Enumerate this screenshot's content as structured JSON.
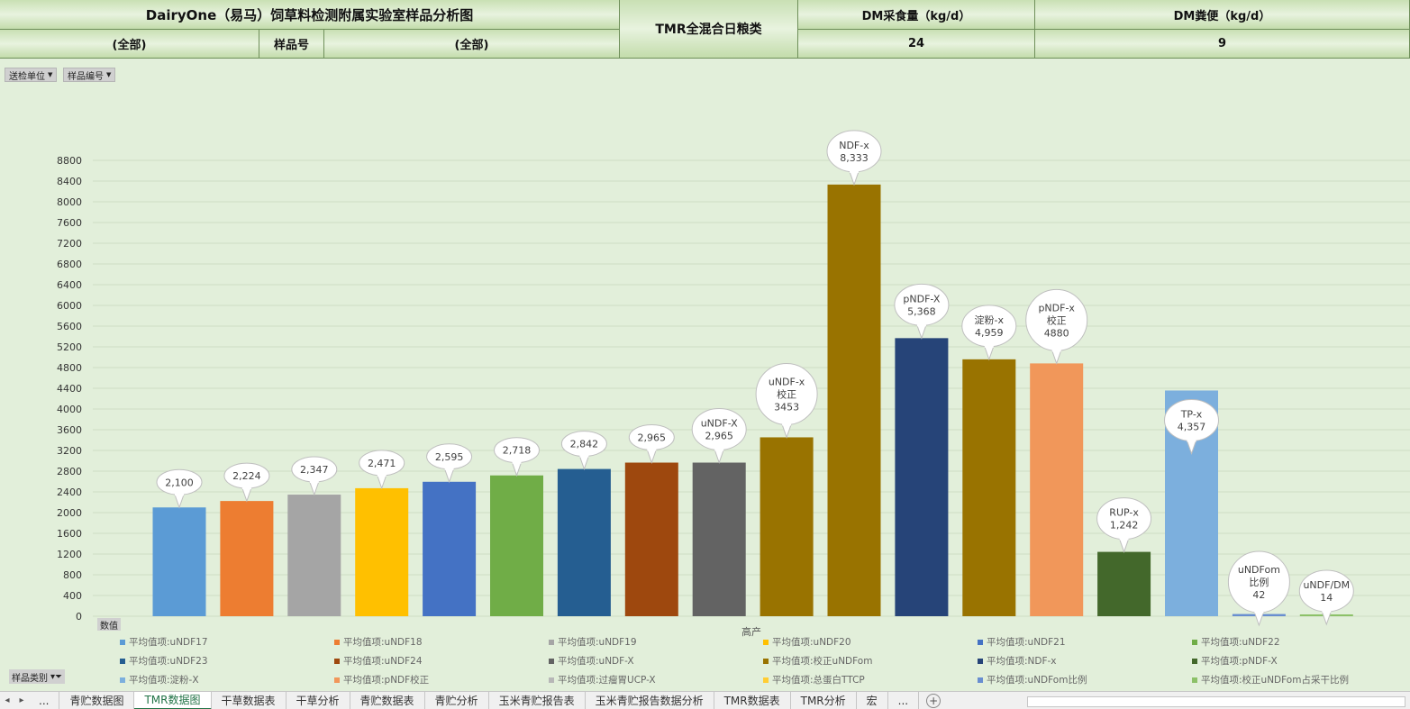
{
  "header": {
    "title": "DairyOne（易马）饲草料检测附属实验室样品分析图",
    "filter1_value": "(全部)",
    "sample_label": "样品号",
    "filter2_value": "(全部)",
    "tmr_label": "TMR全混合日粮类",
    "dm_intake_label": "DM采食量（kg/d）",
    "dm_intake_value": "24",
    "dm_feces_label": "DM粪便（kg/d）",
    "dm_feces_value": "9"
  },
  "slicers": {
    "unit": "送检单位",
    "sample_no": "样品编号",
    "values": "数值",
    "category": "样品类别"
  },
  "colors": {
    "background": "#e2efda",
    "grid": "#cfdcc4"
  },
  "chart_data": {
    "type": "bar",
    "xlabel": "高产",
    "ylim": [
      0,
      8800
    ],
    "yticks": [
      0,
      400,
      800,
      1200,
      1600,
      2000,
      2400,
      2800,
      3200,
      3600,
      4000,
      4400,
      4800,
      5200,
      5600,
      6000,
      6400,
      6800,
      7200,
      7600,
      8000,
      8400,
      8800
    ],
    "grid": true,
    "legend_position": "bottom",
    "series": [
      {
        "name": "平均值项:uNDF17",
        "value": 2100,
        "label": [
          "2,100"
        ],
        "color": "#5b9bd5"
      },
      {
        "name": "平均值项:uNDF18",
        "value": 2224,
        "label": [
          "2,224"
        ],
        "color": "#ed7d31"
      },
      {
        "name": "平均值项:uNDF19",
        "value": 2347,
        "label": [
          "2,347"
        ],
        "color": "#a5a5a5"
      },
      {
        "name": "平均值项:uNDF20",
        "value": 2471,
        "label": [
          "2,471"
        ],
        "color": "#ffc000"
      },
      {
        "name": "平均值项:uNDF21",
        "value": 2595,
        "label": [
          "2,595"
        ],
        "color": "#4472c4"
      },
      {
        "name": "平均值项:uNDF22",
        "value": 2718,
        "label": [
          "2,718"
        ],
        "color": "#70ad47"
      },
      {
        "name": "平均值项:uNDF23",
        "value": 2842,
        "label": [
          "2,842"
        ],
        "color": "#255e91"
      },
      {
        "name": "平均值项:uNDF24",
        "value": 2965,
        "label": [
          "2,965"
        ],
        "color": "#9e480e"
      },
      {
        "name": "平均值项:uNDF-X",
        "value": 2965,
        "label": [
          "uNDF-X",
          "2,965"
        ],
        "color": "#636363"
      },
      {
        "name": "平均值项:校正uNDFom",
        "value": 3453,
        "label": [
          "uNDF-x",
          "校正",
          "3453"
        ],
        "color": "#997300"
      },
      {
        "name": "平均值项:NDF-x",
        "value": 8333,
        "label": [
          "NDF-x",
          "8,333"
        ],
        "color": "#997300"
      },
      {
        "name": "平均值项:pNDF-X",
        "value": 5368,
        "label": [
          "pNDF-X",
          "5,368"
        ],
        "color": "#264478"
      },
      {
        "name": "平均值项:淀粉-X",
        "value": 4959,
        "label": [
          "淀粉-x",
          "4,959"
        ],
        "color": "#997300"
      },
      {
        "name": "平均值项:pNDF校正",
        "value": 4880,
        "label": [
          "pNDF-x",
          "校正",
          "4880"
        ],
        "color": "#f1975a"
      },
      {
        "name": "平均值项:过瘤胃UCP-X",
        "value": 1242,
        "label": [
          "RUP-x",
          "1,242"
        ],
        "color": "#43682b"
      },
      {
        "name": "平均值项:总蛋白TTCP",
        "value": 4357,
        "label": [
          "TP-x",
          "4,357"
        ],
        "color": "#7cafdd"
      },
      {
        "name": "平均值项:uNDFom比例",
        "value": 42,
        "label": [
          "uNDFom",
          "比例",
          "42"
        ],
        "color": "#698ed0"
      },
      {
        "name": "平均值项:校正uNDFom占采干比例",
        "value": 14,
        "label": [
          "uNDF/DM",
          "14"
        ],
        "color": "#8cc168"
      }
    ],
    "legend_colors": [
      "#5b9bd5",
      "#ed7d31",
      "#a5a5a5",
      "#ffc000",
      "#4472c4",
      "#70ad47",
      "#255e91",
      "#9e480e",
      "#636363",
      "#997300",
      "#264478",
      "#43682b",
      "#7cafdd",
      "#f1975a",
      "#b7b7b7",
      "#ffcd33",
      "#698ed0",
      "#8cc168"
    ],
    "legend_entries": [
      "平均值项:uNDF17",
      "平均值项:uNDF18",
      "平均值项:uNDF19",
      "平均值项:uNDF20",
      "平均值项:uNDF21",
      "平均值项:uNDF22",
      "平均值项:uNDF23",
      "平均值项:uNDF24",
      "平均值项:uNDF-X",
      "平均值项:校正uNDFom",
      "平均值项:NDF-x",
      "平均值项:pNDF-X",
      "平均值项:淀粉-X",
      "平均值项:pNDF校正",
      "平均值项:过瘤胃UCP-X",
      "平均值项:总蛋白TTCP",
      "平均值项:uNDFom比例",
      "平均值项:校正uNDFom占采干比例"
    ]
  },
  "tabs": [
    "青贮数据图",
    "TMR数据图",
    "干草数据表",
    "干草分析",
    "青贮数据表",
    "青贮分析",
    "玉米青贮报告表",
    "玉米青贮报告数据分析",
    "TMR数据表",
    "TMR分析",
    "宏"
  ],
  "active_tab": 1,
  "tab_nav": {
    "more": "...",
    "more_right": "..."
  }
}
